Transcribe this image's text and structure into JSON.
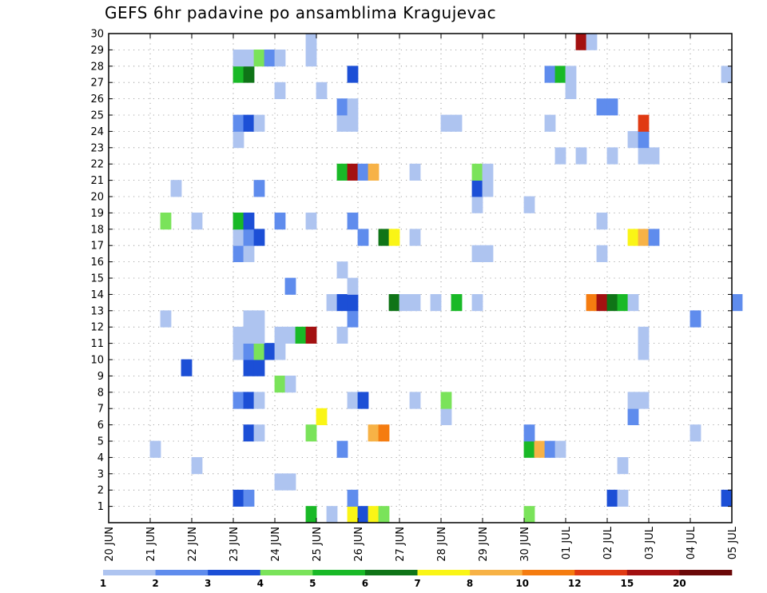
{
  "chart_data": {
    "type": "heatmap",
    "title": "GEFS 6hr padavine po ansamblima Kragujevac",
    "x_ticks": [
      "20 JUN",
      "21 JUN",
      "22 JUN",
      "23 JUN",
      "24 JUN",
      "25 JUN",
      "26 JUN",
      "27 JUN",
      "28 JUN",
      "29 JUN",
      "30 JUN",
      "01 JUL",
      "02 JUL",
      "03 JUL",
      "04 JUL",
      "05 JUL"
    ],
    "y_ticks": [
      "1",
      "2",
      "3",
      "4",
      "5",
      "6",
      "7",
      "8",
      "9",
      "10",
      "11",
      "12",
      "13",
      "14",
      "15",
      "16",
      "17",
      "18",
      "19",
      "20",
      "21",
      "22",
      "23",
      "24",
      "25",
      "26",
      "27",
      "28",
      "29",
      "30"
    ],
    "x_unit_note": "x = days since 20 JUN (time step 6 h)",
    "xlim": [
      0,
      15
    ],
    "ylim": [
      0,
      30
    ],
    "grid": true,
    "legend": {
      "placement": "bottom",
      "labels": [
        "1",
        "2",
        "3",
        "4",
        "5",
        "6",
        "7",
        "8",
        "10",
        "12",
        "15",
        "20"
      ],
      "colors": [
        "#aec4f0",
        "#5f8ced",
        "#1c4fd6",
        "#7ae35a",
        "#19b927",
        "#0f7417",
        "#faf516",
        "#f7b246",
        "#f57c10",
        "#e03a13",
        "#a31111",
        "#6b0808"
      ]
    },
    "cells": [
      {
        "x": 4.75,
        "y": 0,
        "v": 5.5
      },
      {
        "x": 5.25,
        "y": 0,
        "v": 1.5
      },
      {
        "x": 5.75,
        "y": 0,
        "v": 7.5
      },
      {
        "x": 6.0,
        "y": 0,
        "v": 3.5
      },
      {
        "x": 6.25,
        "y": 0,
        "v": 7.5
      },
      {
        "x": 6.5,
        "y": 0,
        "v": 4.5
      },
      {
        "x": 10.0,
        "y": 0,
        "v": 4.5
      },
      {
        "x": 3.0,
        "y": 1,
        "v": 3.5
      },
      {
        "x": 3.25,
        "y": 1,
        "v": 2.5
      },
      {
        "x": 5.75,
        "y": 1,
        "v": 2.5
      },
      {
        "x": 12.0,
        "y": 1,
        "v": 3.5
      },
      {
        "x": 12.25,
        "y": 1,
        "v": 1.5
      },
      {
        "x": 14.75,
        "y": 1,
        "v": 3.5
      },
      {
        "x": 4.0,
        "y": 2,
        "v": 1.5
      },
      {
        "x": 4.25,
        "y": 2,
        "v": 1.5
      },
      {
        "x": 2.0,
        "y": 3,
        "v": 1.5
      },
      {
        "x": 12.25,
        "y": 3,
        "v": 1.5
      },
      {
        "x": 1.0,
        "y": 4,
        "v": 1.5
      },
      {
        "x": 5.5,
        "y": 4,
        "v": 2.5
      },
      {
        "x": 10.0,
        "y": 4,
        "v": 5.5
      },
      {
        "x": 10.25,
        "y": 4,
        "v": 9
      },
      {
        "x": 10.5,
        "y": 4,
        "v": 2.5
      },
      {
        "x": 10.75,
        "y": 4,
        "v": 1.5
      },
      {
        "x": 3.25,
        "y": 5,
        "v": 3.5
      },
      {
        "x": 3.5,
        "y": 5,
        "v": 1.5
      },
      {
        "x": 4.75,
        "y": 5,
        "v": 4.5
      },
      {
        "x": 6.25,
        "y": 5,
        "v": 9
      },
      {
        "x": 6.5,
        "y": 5,
        "v": 11
      },
      {
        "x": 10.0,
        "y": 5,
        "v": 2.5
      },
      {
        "x": 14.0,
        "y": 5,
        "v": 1.5
      },
      {
        "x": 5.0,
        "y": 6,
        "v": 7.5
      },
      {
        "x": 8.0,
        "y": 6,
        "v": 1.5
      },
      {
        "x": 12.5,
        "y": 6,
        "v": 2.5
      },
      {
        "x": 3.0,
        "y": 7,
        "v": 2.5
      },
      {
        "x": 3.25,
        "y": 7,
        "v": 3.5
      },
      {
        "x": 3.5,
        "y": 7,
        "v": 1.5
      },
      {
        "x": 5.75,
        "y": 7,
        "v": 1.5
      },
      {
        "x": 6.0,
        "y": 7,
        "v": 3.5
      },
      {
        "x": 7.25,
        "y": 7,
        "v": 1.5
      },
      {
        "x": 8.0,
        "y": 7,
        "v": 4.5
      },
      {
        "x": 12.5,
        "y": 7,
        "v": 1.5
      },
      {
        "x": 12.75,
        "y": 7,
        "v": 1.5
      },
      {
        "x": 4.0,
        "y": 8,
        "v": 4.5
      },
      {
        "x": 4.25,
        "y": 8,
        "v": 1.5
      },
      {
        "x": 1.75,
        "y": 9,
        "v": 3.5
      },
      {
        "x": 3.25,
        "y": 9,
        "v": 3.5
      },
      {
        "x": 3.5,
        "y": 9,
        "v": 3.5
      },
      {
        "x": 3.0,
        "y": 10,
        "v": 1.5
      },
      {
        "x": 3.25,
        "y": 10,
        "v": 2.5
      },
      {
        "x": 3.5,
        "y": 10,
        "v": 4.5
      },
      {
        "x": 3.75,
        "y": 10,
        "v": 3.5
      },
      {
        "x": 4.0,
        "y": 10,
        "v": 1.5
      },
      {
        "x": 12.75,
        "y": 10,
        "v": 1.5
      },
      {
        "x": 3.0,
        "y": 11,
        "v": 1.5
      },
      {
        "x": 3.25,
        "y": 11,
        "v": 1.5
      },
      {
        "x": 3.5,
        "y": 11,
        "v": 1.5
      },
      {
        "x": 4.0,
        "y": 11,
        "v": 1.5
      },
      {
        "x": 4.25,
        "y": 11,
        "v": 1.5
      },
      {
        "x": 4.5,
        "y": 11,
        "v": 5.5
      },
      {
        "x": 4.75,
        "y": 11,
        "v": 17
      },
      {
        "x": 5.5,
        "y": 11,
        "v": 1.5
      },
      {
        "x": 12.75,
        "y": 11,
        "v": 1.5
      },
      {
        "x": 1.25,
        "y": 12,
        "v": 1.5
      },
      {
        "x": 3.25,
        "y": 12,
        "v": 1.5
      },
      {
        "x": 3.5,
        "y": 12,
        "v": 1.5
      },
      {
        "x": 5.75,
        "y": 12,
        "v": 2.5
      },
      {
        "x": 14.0,
        "y": 12,
        "v": 2.5
      },
      {
        "x": 5.25,
        "y": 13,
        "v": 1.5
      },
      {
        "x": 5.5,
        "y": 13,
        "v": 3.5
      },
      {
        "x": 5.75,
        "y": 13,
        "v": 3.5
      },
      {
        "x": 6.75,
        "y": 13,
        "v": 6.5
      },
      {
        "x": 7.0,
        "y": 13,
        "v": 1.5
      },
      {
        "x": 7.25,
        "y": 13,
        "v": 1.5
      },
      {
        "x": 7.75,
        "y": 13,
        "v": 1.5
      },
      {
        "x": 8.25,
        "y": 13,
        "v": 5.5
      },
      {
        "x": 8.75,
        "y": 13,
        "v": 1.5
      },
      {
        "x": 11.5,
        "y": 13,
        "v": 11
      },
      {
        "x": 11.75,
        "y": 13,
        "v": 17
      },
      {
        "x": 12.0,
        "y": 13,
        "v": 6.5
      },
      {
        "x": 12.25,
        "y": 13,
        "v": 5.5
      },
      {
        "x": 12.5,
        "y": 13,
        "v": 1.5
      },
      {
        "x": 15.0,
        "y": 13,
        "v": 2.5
      },
      {
        "x": 4.25,
        "y": 14,
        "v": 2.5
      },
      {
        "x": 5.75,
        "y": 14,
        "v": 1.5
      },
      {
        "x": 5.5,
        "y": 15,
        "v": 1.5
      },
      {
        "x": 3.0,
        "y": 16,
        "v": 2.5
      },
      {
        "x": 3.25,
        "y": 16,
        "v": 1.5
      },
      {
        "x": 8.75,
        "y": 16,
        "v": 1.5
      },
      {
        "x": 9.0,
        "y": 16,
        "v": 1.5
      },
      {
        "x": 11.75,
        "y": 16,
        "v": 1.5
      },
      {
        "x": 3.0,
        "y": 17,
        "v": 1.5
      },
      {
        "x": 3.25,
        "y": 17,
        "v": 2.5
      },
      {
        "x": 3.5,
        "y": 17,
        "v": 3.5
      },
      {
        "x": 6.0,
        "y": 17,
        "v": 2.5
      },
      {
        "x": 6.5,
        "y": 17,
        "v": 6.5
      },
      {
        "x": 6.75,
        "y": 17,
        "v": 7.5
      },
      {
        "x": 7.25,
        "y": 17,
        "v": 1.5
      },
      {
        "x": 12.5,
        "y": 17,
        "v": 7.5
      },
      {
        "x": 12.75,
        "y": 17,
        "v": 9
      },
      {
        "x": 13.0,
        "y": 17,
        "v": 2.5
      },
      {
        "x": 1.25,
        "y": 18,
        "v": 4.5
      },
      {
        "x": 2.0,
        "y": 18,
        "v": 1.5
      },
      {
        "x": 3.0,
        "y": 18,
        "v": 5.5
      },
      {
        "x": 3.25,
        "y": 18,
        "v": 3.5
      },
      {
        "x": 4.0,
        "y": 18,
        "v": 2.5
      },
      {
        "x": 4.75,
        "y": 18,
        "v": 1.5
      },
      {
        "x": 5.75,
        "y": 18,
        "v": 2.5
      },
      {
        "x": 11.75,
        "y": 18,
        "v": 1.5
      },
      {
        "x": 8.75,
        "y": 19,
        "v": 1.5
      },
      {
        "x": 10.0,
        "y": 19,
        "v": 1.5
      },
      {
        "x": 1.5,
        "y": 20,
        "v": 1.5
      },
      {
        "x": 3.5,
        "y": 20,
        "v": 2.5
      },
      {
        "x": 8.75,
        "y": 20,
        "v": 3.5
      },
      {
        "x": 9.0,
        "y": 20,
        "v": 1.5
      },
      {
        "x": 5.5,
        "y": 21,
        "v": 5.5
      },
      {
        "x": 5.75,
        "y": 21,
        "v": 17
      },
      {
        "x": 6.0,
        "y": 21,
        "v": 2.5
      },
      {
        "x": 6.25,
        "y": 21,
        "v": 9
      },
      {
        "x": 7.25,
        "y": 21,
        "v": 1.5
      },
      {
        "x": 8.75,
        "y": 21,
        "v": 4.5
      },
      {
        "x": 9.0,
        "y": 21,
        "v": 1.5
      },
      {
        "x": 10.75,
        "y": 22,
        "v": 1.5
      },
      {
        "x": 11.25,
        "y": 22,
        "v": 1.5
      },
      {
        "x": 12.0,
        "y": 22,
        "v": 1.5
      },
      {
        "x": 12.75,
        "y": 22,
        "v": 1.5
      },
      {
        "x": 13.0,
        "y": 22,
        "v": 1.5
      },
      {
        "x": 3.0,
        "y": 23,
        "v": 1.5
      },
      {
        "x": 12.5,
        "y": 23,
        "v": 1.5
      },
      {
        "x": 12.75,
        "y": 23,
        "v": 2.5
      },
      {
        "x": 3.0,
        "y": 24,
        "v": 2.5
      },
      {
        "x": 3.25,
        "y": 24,
        "v": 3.5
      },
      {
        "x": 3.5,
        "y": 24,
        "v": 1.5
      },
      {
        "x": 5.5,
        "y": 24,
        "v": 1.5
      },
      {
        "x": 5.75,
        "y": 24,
        "v": 1.5
      },
      {
        "x": 8.0,
        "y": 24,
        "v": 1.5
      },
      {
        "x": 8.25,
        "y": 24,
        "v": 1.5
      },
      {
        "x": 10.5,
        "y": 24,
        "v": 1.5
      },
      {
        "x": 12.75,
        "y": 24,
        "v": 13.5
      },
      {
        "x": 5.5,
        "y": 25,
        "v": 2.5
      },
      {
        "x": 5.75,
        "y": 25,
        "v": 1.5
      },
      {
        "x": 11.75,
        "y": 25,
        "v": 2.5
      },
      {
        "x": 12.0,
        "y": 25,
        "v": 2.5
      },
      {
        "x": 4.0,
        "y": 26,
        "v": 1.5
      },
      {
        "x": 5.0,
        "y": 26,
        "v": 1.5
      },
      {
        "x": 11.0,
        "y": 26,
        "v": 1.5
      },
      {
        "x": 3.0,
        "y": 27,
        "v": 5.5
      },
      {
        "x": 3.25,
        "y": 27,
        "v": 6.5
      },
      {
        "x": 5.75,
        "y": 27,
        "v": 3.5
      },
      {
        "x": 10.5,
        "y": 27,
        "v": 2.5
      },
      {
        "x": 10.75,
        "y": 27,
        "v": 5.5
      },
      {
        "x": 11.0,
        "y": 27,
        "v": 1.5
      },
      {
        "x": 14.75,
        "y": 27,
        "v": 1.5
      },
      {
        "x": 3.0,
        "y": 28,
        "v": 1.5
      },
      {
        "x": 3.25,
        "y": 28,
        "v": 1.5
      },
      {
        "x": 3.5,
        "y": 28,
        "v": 4.5
      },
      {
        "x": 3.75,
        "y": 28,
        "v": 2.5
      },
      {
        "x": 4.0,
        "y": 28,
        "v": 1.5
      },
      {
        "x": 4.75,
        "y": 28,
        "v": 1.5
      },
      {
        "x": 4.75,
        "y": 29,
        "v": 1.5
      },
      {
        "x": 11.25,
        "y": 29,
        "v": 17
      },
      {
        "x": 11.5,
        "y": 29,
        "v": 1.5
      }
    ]
  }
}
